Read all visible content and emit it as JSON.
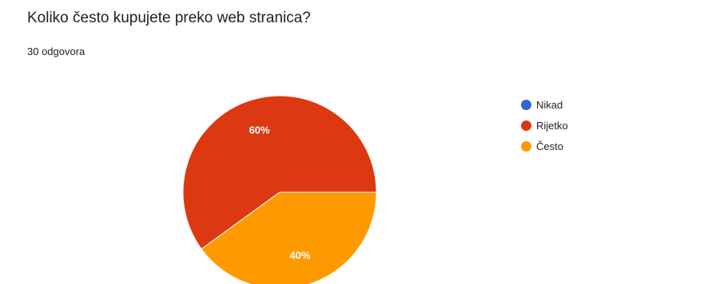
{
  "question": {
    "title": "Koliko često kupujete preko web stranica?",
    "responses": "30 odgovora"
  },
  "chart_data": {
    "type": "pie",
    "title": "Koliko često kupujete preko web stranica?",
    "categories": [
      "Nikad",
      "Rijetko",
      "Često"
    ],
    "values": [
      0,
      60,
      40
    ],
    "labels": [
      "",
      "60%",
      "40%"
    ],
    "colors": [
      "#3366cc",
      "#dc3912",
      "#ff9900"
    ],
    "legend": "right"
  }
}
